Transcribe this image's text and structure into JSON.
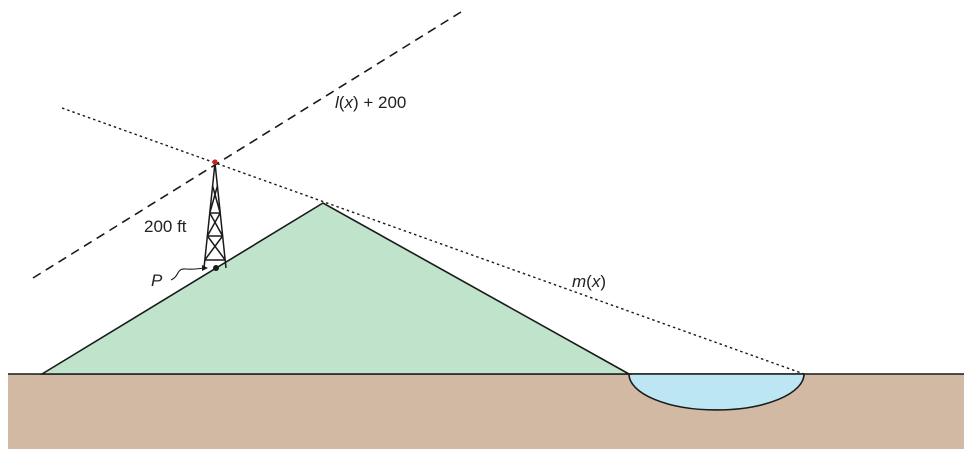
{
  "labels": {
    "l_func": "l",
    "l_var": "x",
    "l_suffix": " + 200",
    "m_func": "m",
    "m_var": "x",
    "tower_height": "200 ft",
    "point": "P"
  },
  "colors": {
    "ground": "#d2b9a3",
    "hill": "#bfe3cb",
    "water": "#bde6f5",
    "stroke": "#1a1a1a",
    "tower_top": "#d02020"
  }
}
